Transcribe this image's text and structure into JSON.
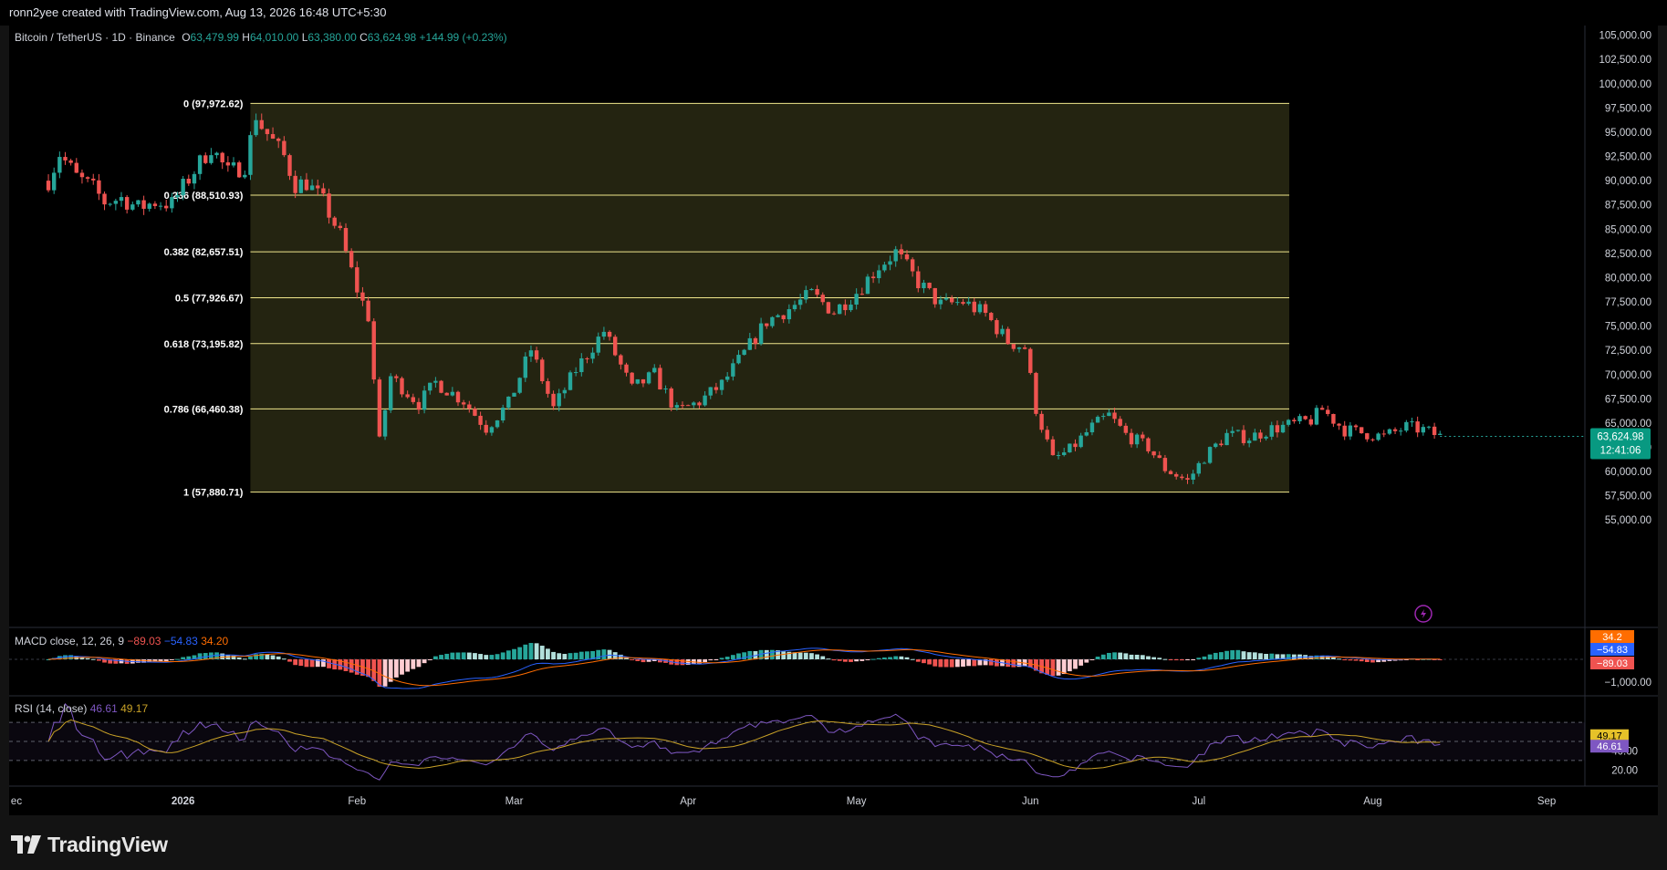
{
  "header": {
    "creator_line": "ronn2yee created with TradingView.com, Aug 13, 2026 16:48 UTC+5:30"
  },
  "symbol_legend": {
    "symbol": "Bitcoin / TetherUS · 1D · Binance",
    "o_label": "O",
    "o_value": "63,479.99",
    "h_label": "H",
    "h_value": "64,010.00",
    "l_label": "L",
    "l_value": "63,380.00",
    "c_label": "C",
    "c_value": "63,624.98",
    "change": "+144.99 (+0.23%)"
  },
  "macd_legend": {
    "name": "MACD",
    "params": "close, 12, 26, 9",
    "v1": "−89.03",
    "v2": "−54.83",
    "v3": "34.20"
  },
  "rsi_legend": {
    "name": "RSI",
    "params": "(14, close)",
    "v1": "46.61",
    "v2": "49.17"
  },
  "brand": {
    "name": "TradingView"
  },
  "colors": {
    "background": "#000000",
    "up": "#26a69a",
    "down": "#ef5350",
    "fib": "#f0e68c",
    "fib_fill": "#2a2a14",
    "macd_line": "#2962ff",
    "signal_line": "#ff6d00",
    "rsi_line": "#7e57c2",
    "rsi_ma": "#c9a227",
    "price_tag": "#089981"
  },
  "chart_data": [
    {
      "type": "candlestick",
      "title": "Bitcoin / TetherUS · 1D · Binance",
      "x_axis": {
        "ticks": [
          "ec",
          "2026",
          "Feb",
          "Mar",
          "Apr",
          "May",
          "Jun",
          "Jul",
          "Aug",
          "Sep"
        ]
      },
      "y_axis": {
        "range": [
          53800,
          106000
        ],
        "ticks": [
          55000,
          57500,
          60000,
          62500,
          65000,
          67500,
          70000,
          72500,
          75000,
          77500,
          80000,
          82500,
          85000,
          87500,
          90000,
          92500,
          95000,
          97500,
          100000,
          102500,
          105000
        ],
        "tick_labels": [
          "55,000.00",
          "57,500.00",
          "60,000.00",
          "62,500.00",
          "65,000.00",
          "67,500.00",
          "70,000.00",
          "72,500.00",
          "75,000.00",
          "77,500.00",
          "80,000.00",
          "82,500.00",
          "85,000.00",
          "87,500.00",
          "90,000.00",
          "92,500.00",
          "95,000.00",
          "97,500.00",
          "100,000.00",
          "102,500.00",
          "105,000.00"
        ]
      },
      "fibonacci_retracement": [
        {
          "ratio": "0",
          "price": 97972.62,
          "label": "0 (97,972.62)"
        },
        {
          "ratio": "0.236",
          "price": 88510.93,
          "label": "0.236 (88,510.93)"
        },
        {
          "ratio": "0.382",
          "price": 82657.51,
          "label": "0.382 (82,657.51)"
        },
        {
          "ratio": "0.5",
          "price": 77926.67,
          "label": "0.5 (77,926.67)"
        },
        {
          "ratio": "0.618",
          "price": 73195.82,
          "label": "0.618 (73,195.82)"
        },
        {
          "ratio": "0.786",
          "price": 66460.38,
          "label": "0.786 (66,460.38)"
        },
        {
          "ratio": "1",
          "price": 57880.71,
          "label": "1 (57,880.71)"
        }
      ],
      "current_price": {
        "value": 63624.98,
        "label": "63,624.98",
        "countdown": "12:41:06"
      },
      "close_path_approx": [
        {
          "date": "2025-12-08",
          "close": 90000
        },
        {
          "date": "2025-12-10",
          "close": 92800
        },
        {
          "date": "2025-12-13",
          "close": 90400
        },
        {
          "date": "2025-12-16",
          "close": 89200
        },
        {
          "date": "2025-12-18",
          "close": 87800
        },
        {
          "date": "2025-12-21",
          "close": 88200
        },
        {
          "date": "2025-12-24",
          "close": 87200
        },
        {
          "date": "2025-12-27",
          "close": 87800
        },
        {
          "date": "2025-12-30",
          "close": 87600
        },
        {
          "date": "2026-01-02",
          "close": 90200
        },
        {
          "date": "2026-01-06",
          "close": 93500
        },
        {
          "date": "2026-01-09",
          "close": 90800
        },
        {
          "date": "2026-01-12",
          "close": 91600
        },
        {
          "date": "2026-01-14",
          "close": 96800
        },
        {
          "date": "2026-01-15",
          "close": 95600
        },
        {
          "date": "2026-01-19",
          "close": 92500
        },
        {
          "date": "2026-01-21",
          "close": 89600
        },
        {
          "date": "2026-01-23",
          "close": 89800
        },
        {
          "date": "2026-01-26",
          "close": 87800
        },
        {
          "date": "2026-01-29",
          "close": 84400
        },
        {
          "date": "2026-02-01",
          "close": 78800
        },
        {
          "date": "2026-02-03",
          "close": 76000
        },
        {
          "date": "2026-02-05",
          "close": 63000
        },
        {
          "date": "2026-02-07",
          "close": 69800
        },
        {
          "date": "2026-02-12",
          "close": 67000
        },
        {
          "date": "2026-02-15",
          "close": 69200
        },
        {
          "date": "2026-02-20",
          "close": 67300
        },
        {
          "date": "2026-02-24",
          "close": 64500
        },
        {
          "date": "2026-02-28",
          "close": 67000
        },
        {
          "date": "2026-03-04",
          "close": 72600
        },
        {
          "date": "2026-03-08",
          "close": 66500
        },
        {
          "date": "2026-03-12",
          "close": 70500
        },
        {
          "date": "2026-03-17",
          "close": 74500
        },
        {
          "date": "2026-03-22",
          "close": 68500
        },
        {
          "date": "2026-03-26",
          "close": 70000
        },
        {
          "date": "2026-03-30",
          "close": 66200
        },
        {
          "date": "2026-04-03",
          "close": 67200
        },
        {
          "date": "2026-04-07",
          "close": 69000
        },
        {
          "date": "2026-04-11",
          "close": 72200
        },
        {
          "date": "2026-04-15",
          "close": 75500
        },
        {
          "date": "2026-04-19",
          "close": 76800
        },
        {
          "date": "2026-04-23",
          "close": 78300
        },
        {
          "date": "2026-04-27",
          "close": 76500
        },
        {
          "date": "2026-05-01",
          "close": 78500
        },
        {
          "date": "2026-05-05",
          "close": 81200
        },
        {
          "date": "2026-05-08",
          "close": 82600
        },
        {
          "date": "2026-05-12",
          "close": 79500
        },
        {
          "date": "2026-05-16",
          "close": 77200
        },
        {
          "date": "2026-05-20",
          "close": 77500
        },
        {
          "date": "2026-05-24",
          "close": 76200
        },
        {
          "date": "2026-05-28",
          "close": 73400
        },
        {
          "date": "2026-05-31",
          "close": 72800
        },
        {
          "date": "2026-06-02",
          "close": 66500
        },
        {
          "date": "2026-06-05",
          "close": 61200
        },
        {
          "date": "2026-06-08",
          "close": 62200
        },
        {
          "date": "2026-06-12",
          "close": 64600
        },
        {
          "date": "2026-06-15",
          "close": 65800
        },
        {
          "date": "2026-06-18",
          "close": 63800
        },
        {
          "date": "2026-06-22",
          "close": 62500
        },
        {
          "date": "2026-06-25",
          "close": 60300
        },
        {
          "date": "2026-06-29",
          "close": 59000
        },
        {
          "date": "2026-07-02",
          "close": 61500
        },
        {
          "date": "2026-07-06",
          "close": 63800
        },
        {
          "date": "2026-07-10",
          "close": 63500
        },
        {
          "date": "2026-07-14",
          "close": 64400
        },
        {
          "date": "2026-07-18",
          "close": 64900
        },
        {
          "date": "2026-07-21",
          "close": 65300
        },
        {
          "date": "2026-07-23",
          "close": 66400
        },
        {
          "date": "2026-07-27",
          "close": 64300
        },
        {
          "date": "2026-07-31",
          "close": 63900
        },
        {
          "date": "2026-08-03",
          "close": 63600
        },
        {
          "date": "2026-08-07",
          "close": 64600
        },
        {
          "date": "2026-08-10",
          "close": 64300
        },
        {
          "date": "2026-08-13",
          "close": 63625
        }
      ]
    },
    {
      "type": "bar",
      "title": "MACD",
      "y_axis": {
        "tick_labels": [
          "−1,000.00"
        ]
      },
      "last_values": {
        "macd": -54.83,
        "signal": 34.2,
        "histogram": -89.03
      }
    },
    {
      "type": "line",
      "title": "RSI",
      "y_axis": {
        "tick_labels": [
          "40.00",
          "20.00"
        ],
        "bands": [
          30,
          50,
          70
        ]
      },
      "last_values": {
        "rsi": 46.61,
        "rsi_ma": 49.17
      }
    }
  ]
}
